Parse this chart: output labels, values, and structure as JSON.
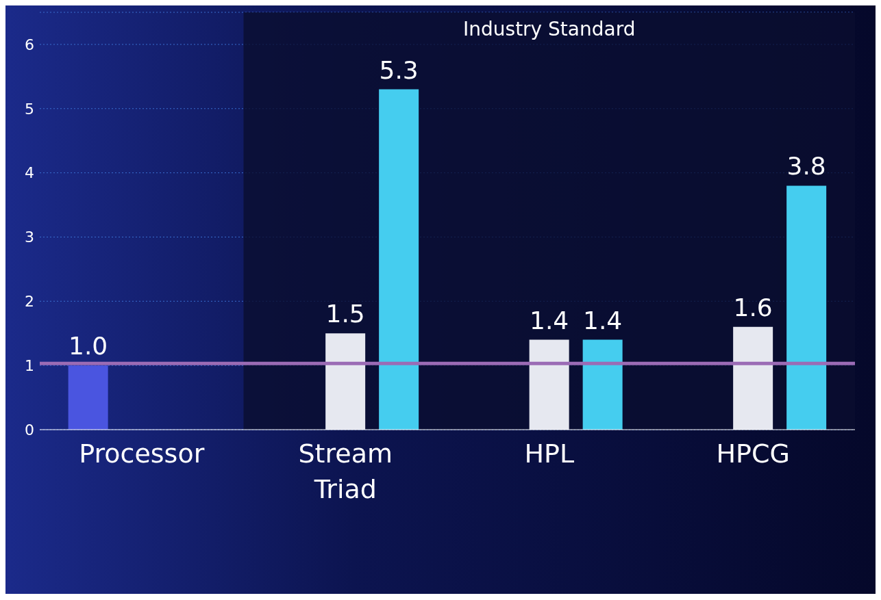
{
  "chart_data": {
    "type": "bar",
    "categories": [
      "Processor",
      "Stream Triad",
      "HPL",
      "HPCG"
    ],
    "series": [
      {
        "color": "#4a55e0",
        "values": [
          1.0,
          null,
          null,
          null
        ],
        "value_labels": [
          "1.0",
          null,
          null,
          null
        ]
      },
      {
        "color": "#e6e8f0",
        "values": [
          null,
          1.5,
          1.4,
          1.6
        ],
        "value_labels": [
          null,
          "1.5",
          "1.4",
          "1.6"
        ]
      },
      {
        "color": "#45cdef",
        "values": [
          null,
          5.3,
          1.4,
          3.8
        ],
        "value_labels": [
          null,
          "5.3",
          "1.4",
          "3.8"
        ]
      }
    ],
    "ylim": [
      0,
      6.5
    ],
    "yticks": [
      0,
      1,
      2,
      3,
      4,
      5,
      6
    ],
    "grid": "y",
    "legend": false,
    "ref_lines": [
      {
        "axis": "y",
        "value": 1.03,
        "color": "#9b6bb5"
      }
    ],
    "bands": [
      {
        "axis": "x",
        "from": "Stream Triad",
        "to": "HPCG",
        "label": "Industry Standard",
        "color": "#0a0e30"
      }
    ]
  }
}
